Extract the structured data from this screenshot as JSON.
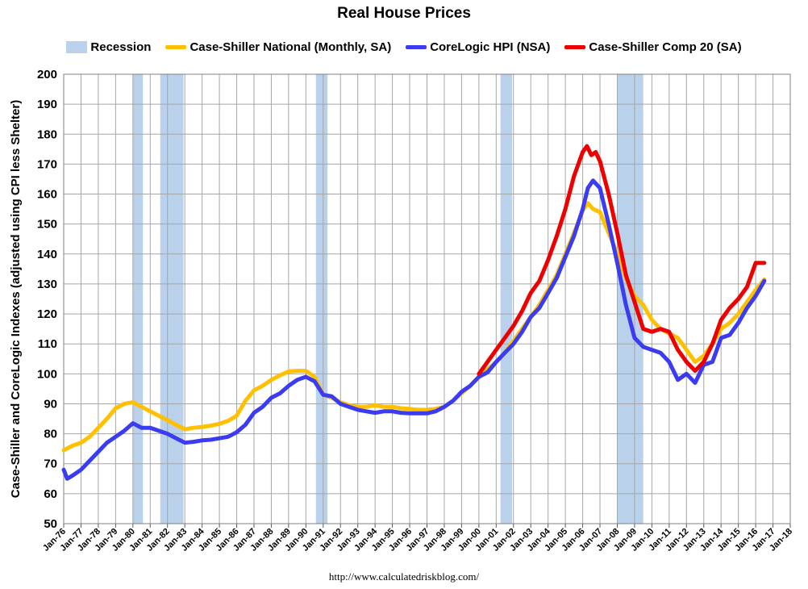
{
  "chart_data": {
    "type": "line",
    "title": "Real House Prices",
    "ylabel": "Case-Shiller and CoreLogic Indexes (adjusted using CPI less Shelter)",
    "xlabel": "",
    "source": "http://www.calculatedriskblog.com/",
    "ylim": [
      50,
      200
    ],
    "yticks": [
      50,
      60,
      70,
      80,
      90,
      100,
      110,
      120,
      130,
      140,
      150,
      160,
      170,
      180,
      190,
      200
    ],
    "xlim": [
      1976.0,
      2018.0
    ],
    "xtick_labels": [
      "Jan-76",
      "Jan-77",
      "Jan-78",
      "Jan-79",
      "Jan-80",
      "Jan-81",
      "Jan-82",
      "Jan-83",
      "Jan-84",
      "Jan-85",
      "Jan-86",
      "Jan-87",
      "Jan-88",
      "Jan-89",
      "Jan-90",
      "Jan-91",
      "Jan-92",
      "Jan-93",
      "Jan-94",
      "Jan-95",
      "Jan-96",
      "Jan-97",
      "Jan-98",
      "Jan-99",
      "Jan-00",
      "Jan-01",
      "Jan-02",
      "Jan-03",
      "Jan-04",
      "Jan-05",
      "Jan-06",
      "Jan-07",
      "Jan-08",
      "Jan-09",
      "Jan-10",
      "Jan-11",
      "Jan-12",
      "Jan-13",
      "Jan-14",
      "Jan-15",
      "Jan-16",
      "Jan-17",
      "Jan-18"
    ],
    "grid": true,
    "legend_position": "top",
    "recessions": [
      {
        "start": 1980.0,
        "end": 1980.58
      },
      {
        "start": 1981.58,
        "end": 1982.92
      },
      {
        "start": 1990.58,
        "end": 1991.25
      },
      {
        "start": 2001.25,
        "end": 2001.92
      },
      {
        "start": 2008.0,
        "end": 2009.5
      }
    ],
    "legend": [
      {
        "name": "Recession",
        "kind": "band",
        "color": "#b9d1ea"
      },
      {
        "name": "Case-Shiller National (Monthly, SA)",
        "kind": "line",
        "color": "#ffc000"
      },
      {
        "name": "CoreLogic HPI (NSA)",
        "kind": "line",
        "color": "#3b3bf2"
      },
      {
        "name": "Case-Shiller Comp 20  (SA)",
        "kind": "line",
        "color": "#ee0000"
      }
    ],
    "series": [
      {
        "name": "Case-Shiller National (Monthly, SA)",
        "color": "#ffc000",
        "x": [
          1976.0,
          1976.5,
          1977.0,
          1977.5,
          1978.0,
          1978.5,
          1979.0,
          1979.5,
          1980.0,
          1980.5,
          1981.0,
          1981.5,
          1982.0,
          1982.5,
          1983.0,
          1983.5,
          1984.0,
          1984.5,
          1985.0,
          1985.5,
          1986.0,
          1986.5,
          1987.0,
          1987.5,
          1988.0,
          1988.5,
          1989.0,
          1989.5,
          1990.0,
          1990.5,
          1991.0,
          1991.5,
          1992.0,
          1992.5,
          1993.0,
          1993.5,
          1994.0,
          1994.5,
          1995.0,
          1995.5,
          1996.0,
          1996.5,
          1997.0,
          1997.5,
          1998.0,
          1998.5,
          1999.0,
          1999.5,
          2000.0,
          2000.5,
          2001.0,
          2001.5,
          2002.0,
          2002.5,
          2003.0,
          2003.5,
          2004.0,
          2004.5,
          2005.0,
          2005.5,
          2006.0,
          2006.3,
          2006.6,
          2007.0,
          2007.5,
          2008.0,
          2008.5,
          2009.0,
          2009.5,
          2010.0,
          2010.5,
          2011.0,
          2011.5,
          2012.0,
          2012.5,
          2013.0,
          2013.5,
          2014.0,
          2014.5,
          2015.0,
          2015.5,
          2016.0,
          2016.5
        ],
        "y": [
          74.5,
          76,
          77,
          79,
          82,
          85,
          88.5,
          90,
          90.5,
          89,
          87.5,
          86,
          84.5,
          83,
          81.5,
          82,
          82.3,
          82.7,
          83.3,
          84.3,
          86,
          91,
          94.5,
          96,
          98,
          99.5,
          100.8,
          101,
          101,
          99,
          93,
          92,
          90.5,
          89.5,
          89,
          89,
          89.5,
          89,
          89,
          88.5,
          88.3,
          88,
          88,
          88.3,
          89,
          91,
          93.5,
          96,
          99,
          101.5,
          104,
          107,
          111,
          115,
          119,
          123,
          128,
          133,
          140,
          147,
          154.5,
          157,
          155,
          154,
          147,
          140,
          132,
          126,
          123,
          118,
          115,
          113.5,
          112,
          108,
          104,
          106,
          110,
          115,
          117,
          120,
          124,
          128,
          131.5
        ]
      },
      {
        "name": "CoreLogic HPI (NSA)",
        "color": "#3b3bf2",
        "x": [
          1976.0,
          1976.2,
          1976.5,
          1977.0,
          1977.5,
          1978.0,
          1978.5,
          1979.0,
          1979.5,
          1980.0,
          1980.5,
          1981.0,
          1981.5,
          1982.0,
          1982.5,
          1983.0,
          1983.5,
          1984.0,
          1984.5,
          1985.0,
          1985.5,
          1986.0,
          1986.5,
          1987.0,
          1987.5,
          1988.0,
          1988.5,
          1989.0,
          1989.5,
          1990.0,
          1990.5,
          1991.0,
          1991.5,
          1992.0,
          1992.5,
          1993.0,
          1993.5,
          1994.0,
          1994.5,
          1995.0,
          1995.5,
          1996.0,
          1996.5,
          1997.0,
          1997.5,
          1998.0,
          1998.5,
          1999.0,
          1999.5,
          2000.0,
          2000.5,
          2001.0,
          2001.5,
          2002.0,
          2002.5,
          2003.0,
          2003.5,
          2004.0,
          2004.5,
          2005.0,
          2005.5,
          2006.0,
          2006.3,
          2006.6,
          2007.0,
          2007.5,
          2008.0,
          2008.5,
          2009.0,
          2009.5,
          2010.0,
          2010.5,
          2011.0,
          2011.5,
          2012.0,
          2012.5,
          2013.0,
          2013.5,
          2014.0,
          2014.5,
          2015.0,
          2015.5,
          2016.0,
          2016.5
        ],
        "y": [
          68,
          65,
          66,
          68,
          71,
          74,
          77,
          79,
          81,
          83.5,
          82,
          82,
          81,
          80,
          78.5,
          77,
          77.3,
          77.8,
          78,
          78.5,
          79,
          80.5,
          83,
          87,
          89,
          92,
          93.5,
          96,
          98,
          99,
          97.5,
          93,
          92.5,
          90,
          89,
          88,
          87.5,
          87,
          87.5,
          87.5,
          87,
          86.8,
          86.8,
          86.8,
          87.5,
          89,
          91,
          94,
          96,
          99,
          100.5,
          104,
          107,
          110,
          114,
          119,
          122,
          127,
          132,
          139,
          146,
          155,
          162,
          164.5,
          162,
          150,
          137,
          123,
          112,
          109,
          108,
          107,
          104,
          98,
          100,
          97,
          103,
          104,
          112,
          113,
          117,
          122,
          126,
          131
        ]
      },
      {
        "name": "Case-Shiller Comp 20  (SA)",
        "color": "#ee0000",
        "x": [
          2000.0,
          2000.5,
          2001.0,
          2001.5,
          2002.0,
          2002.5,
          2003.0,
          2003.5,
          2004.0,
          2004.5,
          2005.0,
          2005.5,
          2006.0,
          2006.25,
          2006.5,
          2006.75,
          2007.0,
          2007.5,
          2008.0,
          2008.5,
          2009.0,
          2009.5,
          2010.0,
          2010.5,
          2011.0,
          2011.5,
          2012.0,
          2012.5,
          2013.0,
          2013.5,
          2014.0,
          2014.5,
          2015.0,
          2015.5,
          2016.0,
          2016.5
        ],
        "y": [
          100,
          104,
          108,
          112,
          116,
          121,
          127,
          131,
          138,
          146,
          155,
          166,
          174,
          176,
          173,
          174,
          171,
          160,
          147,
          133,
          124,
          115,
          114,
          115,
          114,
          108,
          104,
          101,
          104,
          110,
          118,
          122,
          125,
          129,
          137,
          137
        ]
      }
    ]
  }
}
